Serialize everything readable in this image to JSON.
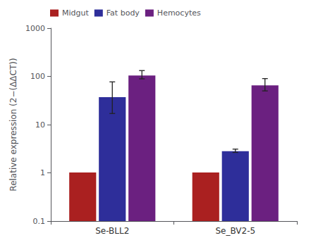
{
  "chart_data": {
    "type": "bar",
    "categories": [
      "Se-BLL2",
      "Se_BV2-5"
    ],
    "series": [
      {
        "name": "Midgut",
        "color": "#aa2020",
        "values": [
          1.02,
          1.02
        ],
        "errors_upper": [
          0.0,
          0.0
        ],
        "errors_lower": [
          0.0,
          0.0
        ]
      },
      {
        "name": "Fat body",
        "color": "#2e2e9a",
        "values": [
          37.0,
          2.8
        ],
        "errors_upper": [
          40.0,
          0.3
        ],
        "errors_lower": [
          20.0,
          0.15
        ]
      },
      {
        "name": "Hemocytes",
        "color": "#6b2080",
        "values": [
          104.0,
          65.0
        ],
        "errors_upper": [
          28.0,
          25.0
        ],
        "errors_lower": [
          15.0,
          15.0
        ]
      }
    ],
    "ylabel": "Relative expression (2−(ΔΔCT))",
    "ylim": [
      0.1,
      1000
    ],
    "yticks": [
      0.1,
      1,
      10,
      100,
      1000
    ],
    "log": "y",
    "legend": "upper left",
    "grid": false
  }
}
